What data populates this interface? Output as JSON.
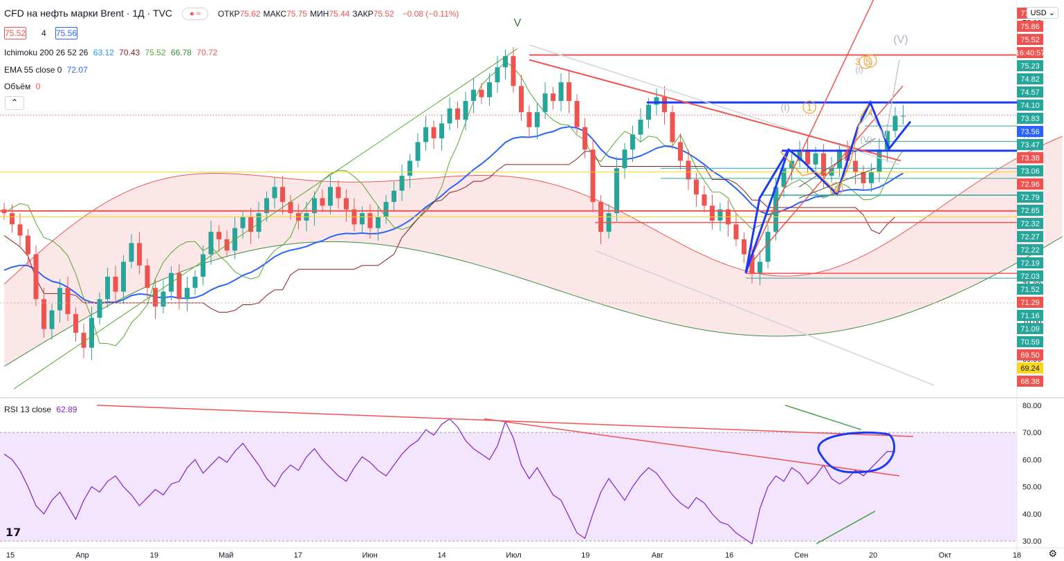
{
  "header": {
    "symbol": "CFD на нефть марки Brent · 1Д · TVC",
    "ohlc": [
      {
        "k": "ОТКР",
        "v": "75.62"
      },
      {
        "k": "МАКС",
        "v": "75.75"
      },
      {
        "k": "МИН",
        "v": "75.44"
      },
      {
        "k": "ЗАКР",
        "v": "75.52"
      }
    ],
    "change": "−0.08 (−0.11%)",
    "bid": "75.52",
    "spread": "4",
    "ask": "75.56",
    "currency": "USD"
  },
  "indicators": {
    "ichimoku_label": "Ichimoku 200 26 52 26",
    "ichimoku_values": [
      "63.12",
      "70.43",
      "75.52",
      "66.78",
      "70.72"
    ],
    "ema_label": "EMA 55 close 0",
    "ema_value": "72.07",
    "volume_label": "Объём",
    "volume_value": "0",
    "rsi_label": "RSI 13 close",
    "rsi_value": "62.89"
  },
  "colors": {
    "up": "#26a69a",
    "down": "#ef5350",
    "ema": "#2962ff",
    "rsi": "#7e22ce",
    "cloud": "#f8c8c8",
    "tenkan": "#55a630",
    "kijun": "#8b1d1d"
  },
  "chart_data": [
    {
      "type": "candlestick",
      "title": "CFD на нефть марки Brent · 1Д · TVC",
      "ylim": [
        68.0,
        78.6
      ],
      "y_ticks": [
        "78.00",
        "76.50",
        "75.00",
        "74.00",
        "73.00",
        "72.00",
        "71.00",
        "70.00",
        "69.00"
      ],
      "price_labels": [
        {
          "v": "77.13",
          "color": "#ef5350"
        },
        {
          "v": "75.86",
          "color": "#ef5350"
        },
        {
          "v": "75.52",
          "color": "#ef5350"
        },
        {
          "v": "16:40:57",
          "color": "#ef5350"
        },
        {
          "v": "75.23",
          "color": "#26a69a"
        },
        {
          "v": "74.82",
          "color": "#26a69a"
        },
        {
          "v": "74.57",
          "color": "#26a69a"
        },
        {
          "v": "74.10",
          "color": "#26a69a"
        },
        {
          "v": "73.83",
          "color": "#26a69a"
        },
        {
          "v": "73.56",
          "color": "#2962ff"
        },
        {
          "v": "73.47",
          "color": "#26a69a"
        },
        {
          "v": "73.38",
          "color": "#ef5350"
        },
        {
          "v": "73.06",
          "color": "#26a69a"
        },
        {
          "v": "72.96",
          "color": "#ef5350"
        },
        {
          "v": "72.79",
          "color": "#26a69a"
        },
        {
          "v": "72.65",
          "color": "#26a69a"
        },
        {
          "v": "72.32",
          "color": "#26a69a"
        },
        {
          "v": "72.27",
          "color": "#26a69a"
        },
        {
          "v": "72.22",
          "color": "#26a69a"
        },
        {
          "v": "72.19",
          "color": "#26a69a"
        },
        {
          "v": "72.03",
          "color": "#26a69a"
        },
        {
          "v": "71.52",
          "color": "#26a69a"
        },
        {
          "v": "71.29",
          "color": "#ef5350"
        },
        {
          "v": "71.16",
          "color": "#26a69a"
        },
        {
          "v": "71.09",
          "color": "#26a69a"
        },
        {
          "v": "70.59",
          "color": "#26a69a"
        },
        {
          "v": "69.50",
          "color": "#ef5350"
        },
        {
          "v": "69.24",
          "color": "#f9d71c"
        },
        {
          "v": "68.38",
          "color": "#ef5350"
        }
      ],
      "x_labels": [
        "15",
        "Апр",
        "19",
        "Май",
        "17",
        "Июн",
        "14",
        "Июл",
        "19",
        "Авг",
        "16",
        "Сен",
        "20",
        "Окт",
        "18"
      ],
      "wave_labels": [
        "V",
        "(V)",
        "(I)",
        "1",
        "2",
        "3",
        "4",
        "5",
        "(V)",
        "(I)"
      ],
      "closes": [
        72.9,
        72.6,
        72.3,
        71.8,
        70.6,
        69.8,
        70.3,
        70.9,
        70.2,
        69.7,
        69.3,
        70.1,
        70.6,
        71.2,
        70.8,
        71.6,
        72.1,
        71.5,
        70.9,
        70.4,
        70.8,
        71.3,
        70.6,
        70.9,
        71.2,
        71.8,
        72.4,
        72.2,
        71.9,
        72.5,
        72.8,
        72.4,
        72.9,
        73.3,
        73.6,
        73.2,
        72.9,
        72.7,
        72.9,
        73.3,
        73.1,
        73.6,
        73.3,
        73.0,
        72.6,
        72.9,
        72.5,
        72.8,
        73.2,
        73.5,
        73.9,
        74.3,
        74.8,
        75.2,
        74.9,
        75.3,
        75.7,
        75.4,
        75.9,
        76.2,
        76.0,
        76.4,
        76.8,
        77.1,
        76.3,
        75.6,
        75.2,
        75.6,
        76.1,
        75.9,
        76.4,
        75.9,
        75.2,
        74.6,
        73.2,
        72.4,
        72.9,
        74.1,
        74.6,
        75.0,
        75.4,
        75.8,
        76.0,
        75.6,
        74.8,
        74.3,
        73.8,
        73.4,
        73.1,
        72.7,
        73.0,
        72.6,
        72.2,
        71.8,
        71.3,
        71.6,
        72.4,
        73.6,
        74.1,
        74.3,
        74.6,
        74.2,
        74.5,
        73.9,
        74.1,
        74.6,
        74.3,
        74.0,
        73.7,
        74.0,
        74.6,
        75.1,
        75.5,
        75.5
      ]
    },
    {
      "type": "line",
      "title": "RSI 13 close",
      "ylim": [
        28,
        82
      ],
      "y_ticks": [
        "80.00",
        "70.00",
        "60.00",
        "50.00",
        "40.00",
        "30.00"
      ],
      "levels": [
        70,
        30
      ],
      "values": [
        62,
        60,
        56,
        50,
        43,
        40,
        45,
        48,
        43,
        38,
        45,
        50,
        48,
        52,
        54,
        50,
        47,
        43,
        46,
        49,
        47,
        51,
        52,
        57,
        60,
        55,
        58,
        61,
        59,
        63,
        66,
        62,
        58,
        53,
        50,
        55,
        58,
        56,
        61,
        64,
        60,
        57,
        54,
        52,
        57,
        61,
        59,
        56,
        54,
        58,
        62,
        65,
        67,
        71,
        69,
        73,
        75,
        72,
        67,
        64,
        62,
        60,
        65,
        74,
        68,
        58,
        53,
        57,
        52,
        47,
        45,
        39,
        33,
        31,
        40,
        48,
        53,
        49,
        45,
        50,
        54,
        57,
        55,
        51,
        47,
        44,
        42,
        46,
        44,
        40,
        37,
        36,
        33,
        31,
        29,
        42,
        50,
        54,
        52,
        57,
        55,
        51,
        54,
        58,
        53,
        51,
        53,
        56,
        54,
        57,
        60,
        63,
        62.89
      ]
    }
  ]
}
